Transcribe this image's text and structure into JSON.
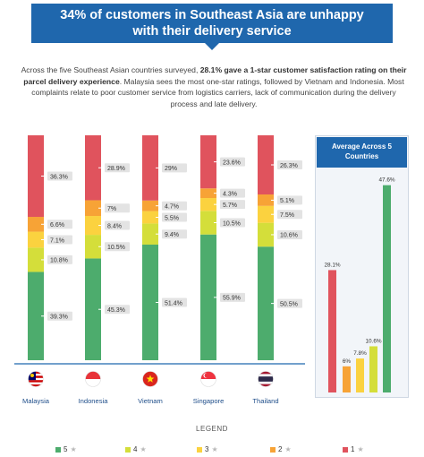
{
  "title_line1": "34% of customers in Southeast Asia are unhappy",
  "title_line2": "with their delivery service",
  "intro": {
    "part1": "Across the five Southeast Asian countries surveyed, ",
    "bold": "28.1% gave a 1-star customer satisfaction rating on their parcel delivery experience",
    "part2": ". Malaysia sees the most one-star ratings, followed by Vietnam and Indonesia. Most complaints relate to poor customer service from logistics carriers, lack of communication during the delivery process and late delivery."
  },
  "side_title": "Average Across 5 Countries",
  "legend_title": "LEGEND",
  "colors": {
    "5": "#4dac6d",
    "4": "#d4de3a",
    "3": "#fbd23f",
    "2": "#f7a336",
    "1": "#e0535d"
  },
  "chart_data": [
    {
      "type": "bar",
      "stacked": true,
      "categories": [
        "Malaysia",
        "Indonesia",
        "Vietnam",
        "Singapore",
        "Thailand"
      ],
      "icons": [
        "malaysia-flag-icon",
        "indonesia-flag-icon",
        "vietnam-flag-icon",
        "singapore-flag-icon",
        "thailand-flag-icon"
      ],
      "series": [
        {
          "name": "5",
          "values": [
            39.3,
            45.3,
            51.4,
            55.9,
            50.5
          ],
          "labels": [
            "39.3%",
            "45.3%",
            "51.4%",
            "55.9%",
            "50.5%"
          ]
        },
        {
          "name": "4",
          "values": [
            10.8,
            10.5,
            9.4,
            10.5,
            10.6
          ],
          "labels": [
            "10.8%",
            "10.5%",
            "9.4%",
            "10.5%",
            "10.6%"
          ]
        },
        {
          "name": "3",
          "values": [
            7.1,
            8.4,
            5.5,
            5.7,
            7.5
          ],
          "labels": [
            "7.1%",
            "8.4%",
            "5.5%",
            "5.7%",
            "7.5%"
          ]
        },
        {
          "name": "2",
          "values": [
            6.6,
            7,
            4.7,
            4.3,
            5.1
          ],
          "labels": [
            "6.6%",
            "7%",
            "4.7%",
            "4.3%",
            "5.1%"
          ]
        },
        {
          "name": "1",
          "values": [
            36.3,
            28.9,
            29,
            23.6,
            26.3
          ],
          "labels": [
            "36.3%",
            "28.9%",
            "29%",
            "23.6%",
            "26.3%"
          ]
        }
      ]
    },
    {
      "type": "bar",
      "title": "Average Across 5 Countries",
      "categories": [
        "1",
        "2",
        "3",
        "4",
        "5"
      ],
      "values": [
        28.1,
        6,
        7.8,
        10.6,
        47.6
      ],
      "labels": [
        "28.1%",
        "6%",
        "7.8%",
        "10.6%",
        "47.6%"
      ],
      "ylim": [
        0,
        50
      ]
    }
  ]
}
